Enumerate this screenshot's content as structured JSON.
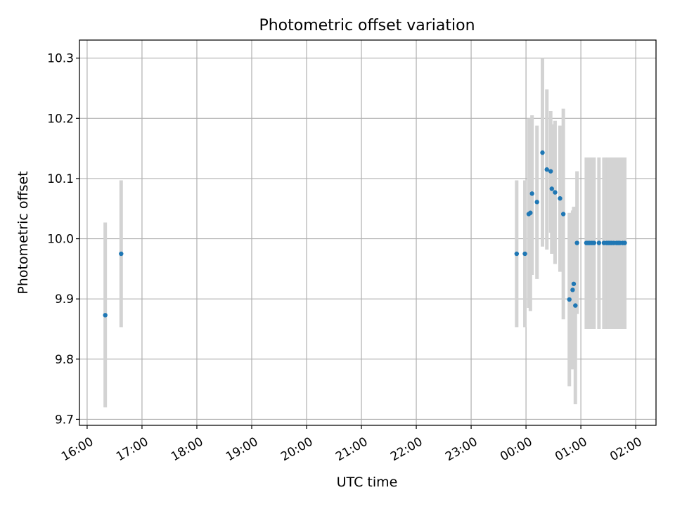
{
  "chart_data": {
    "type": "scatter",
    "title": "Photometric offset variation",
    "xlabel": "UTC time",
    "ylabel": "Photometric offset",
    "x_unit": "hour",
    "x_ticks": [
      {
        "value": 16,
        "label": "16:00"
      },
      {
        "value": 17,
        "label": "17:00"
      },
      {
        "value": 18,
        "label": "18:00"
      },
      {
        "value": 19,
        "label": "19:00"
      },
      {
        "value": 20,
        "label": "20:00"
      },
      {
        "value": 21,
        "label": "21:00"
      },
      {
        "value": 22,
        "label": "22:00"
      },
      {
        "value": 23,
        "label": "23:00"
      },
      {
        "value": 24,
        "label": "00:00"
      },
      {
        "value": 25,
        "label": "01:00"
      },
      {
        "value": 26,
        "label": "02:00"
      }
    ],
    "y_ticks": [
      {
        "value": 9.7,
        "label": "9.7"
      },
      {
        "value": 9.8,
        "label": "9.8"
      },
      {
        "value": 9.9,
        "label": "9.9"
      },
      {
        "value": 10.0,
        "label": "10.0"
      },
      {
        "value": 10.1,
        "label": "10.1"
      },
      {
        "value": 10.2,
        "label": "10.2"
      },
      {
        "value": 10.3,
        "label": "10.3"
      }
    ],
    "xlim": [
      15.86,
      26.37
    ],
    "ylim": [
      9.69,
      10.33
    ],
    "grid": true,
    "colors": {
      "points": "#1f77b4",
      "error_bars": "#d3d3d3",
      "grid": "#b0b0b0"
    },
    "points": [
      {
        "x": 16.33,
        "y": 9.873,
        "lo": 9.72,
        "hi": 10.027
      },
      {
        "x": 16.62,
        "y": 9.975,
        "lo": 9.853,
        "hi": 10.097
      },
      {
        "x": 23.83,
        "y": 9.975,
        "lo": 9.853,
        "hi": 10.097
      },
      {
        "x": 23.98,
        "y": 9.975,
        "lo": 9.853,
        "hi": 10.097
      },
      {
        "x": 24.05,
        "y": 10.041,
        "lo": 9.885,
        "hi": 10.2
      },
      {
        "x": 24.08,
        "y": 10.043,
        "lo": 9.88,
        "hi": 10.2
      },
      {
        "x": 24.11,
        "y": 10.075,
        "lo": 9.94,
        "hi": 10.205
      },
      {
        "x": 24.2,
        "y": 10.061,
        "lo": 9.933,
        "hi": 10.188
      },
      {
        "x": 24.3,
        "y": 10.143,
        "lo": 9.987,
        "hi": 10.3
      },
      {
        "x": 24.38,
        "y": 10.115,
        "lo": 9.982,
        "hi": 10.248
      },
      {
        "x": 24.45,
        "y": 10.112,
        "lo": 10.01,
        "hi": 10.212
      },
      {
        "x": 24.47,
        "y": 10.083,
        "lo": 9.975,
        "hi": 10.19
      },
      {
        "x": 24.53,
        "y": 10.077,
        "lo": 9.958,
        "hi": 10.196
      },
      {
        "x": 24.62,
        "y": 10.067,
        "lo": 9.945,
        "hi": 10.188
      },
      {
        "x": 24.68,
        "y": 10.041,
        "lo": 9.866,
        "hi": 10.216
      },
      {
        "x": 24.79,
        "y": 9.899,
        "lo": 9.755,
        "hi": 10.043
      },
      {
        "x": 24.85,
        "y": 9.915,
        "lo": 9.783,
        "hi": 10.047
      },
      {
        "x": 24.87,
        "y": 9.925,
        "lo": 9.785,
        "hi": 10.053
      },
      {
        "x": 24.9,
        "y": 9.889,
        "lo": 9.725,
        "hi": 10.053
      },
      {
        "x": 24.93,
        "y": 9.993,
        "lo": 9.875,
        "hi": 10.112
      },
      {
        "x": 25.1,
        "y": 9.993,
        "lo": 9.85,
        "hi": 10.135
      },
      {
        "x": 25.13,
        "y": 9.993,
        "lo": 9.85,
        "hi": 10.135
      },
      {
        "x": 25.16,
        "y": 9.993,
        "lo": 9.85,
        "hi": 10.135
      },
      {
        "x": 25.2,
        "y": 9.993,
        "lo": 9.85,
        "hi": 10.135
      },
      {
        "x": 25.24,
        "y": 9.993,
        "lo": 9.85,
        "hi": 10.135
      },
      {
        "x": 25.33,
        "y": 9.993,
        "lo": 9.85,
        "hi": 10.135
      },
      {
        "x": 25.42,
        "y": 9.993,
        "lo": 9.85,
        "hi": 10.135
      },
      {
        "x": 25.47,
        "y": 9.993,
        "lo": 9.85,
        "hi": 10.135
      },
      {
        "x": 25.5,
        "y": 9.993,
        "lo": 9.85,
        "hi": 10.135
      },
      {
        "x": 25.53,
        "y": 9.993,
        "lo": 9.85,
        "hi": 10.135
      },
      {
        "x": 25.56,
        "y": 9.993,
        "lo": 9.85,
        "hi": 10.135
      },
      {
        "x": 25.6,
        "y": 9.993,
        "lo": 9.85,
        "hi": 10.135
      },
      {
        "x": 25.65,
        "y": 9.993,
        "lo": 9.85,
        "hi": 10.135
      },
      {
        "x": 25.68,
        "y": 9.993,
        "lo": 9.85,
        "hi": 10.135
      },
      {
        "x": 25.71,
        "y": 9.993,
        "lo": 9.85,
        "hi": 10.135
      },
      {
        "x": 25.76,
        "y": 9.993,
        "lo": 9.85,
        "hi": 10.135
      },
      {
        "x": 25.8,
        "y": 9.993,
        "lo": 9.85,
        "hi": 10.135
      }
    ]
  }
}
